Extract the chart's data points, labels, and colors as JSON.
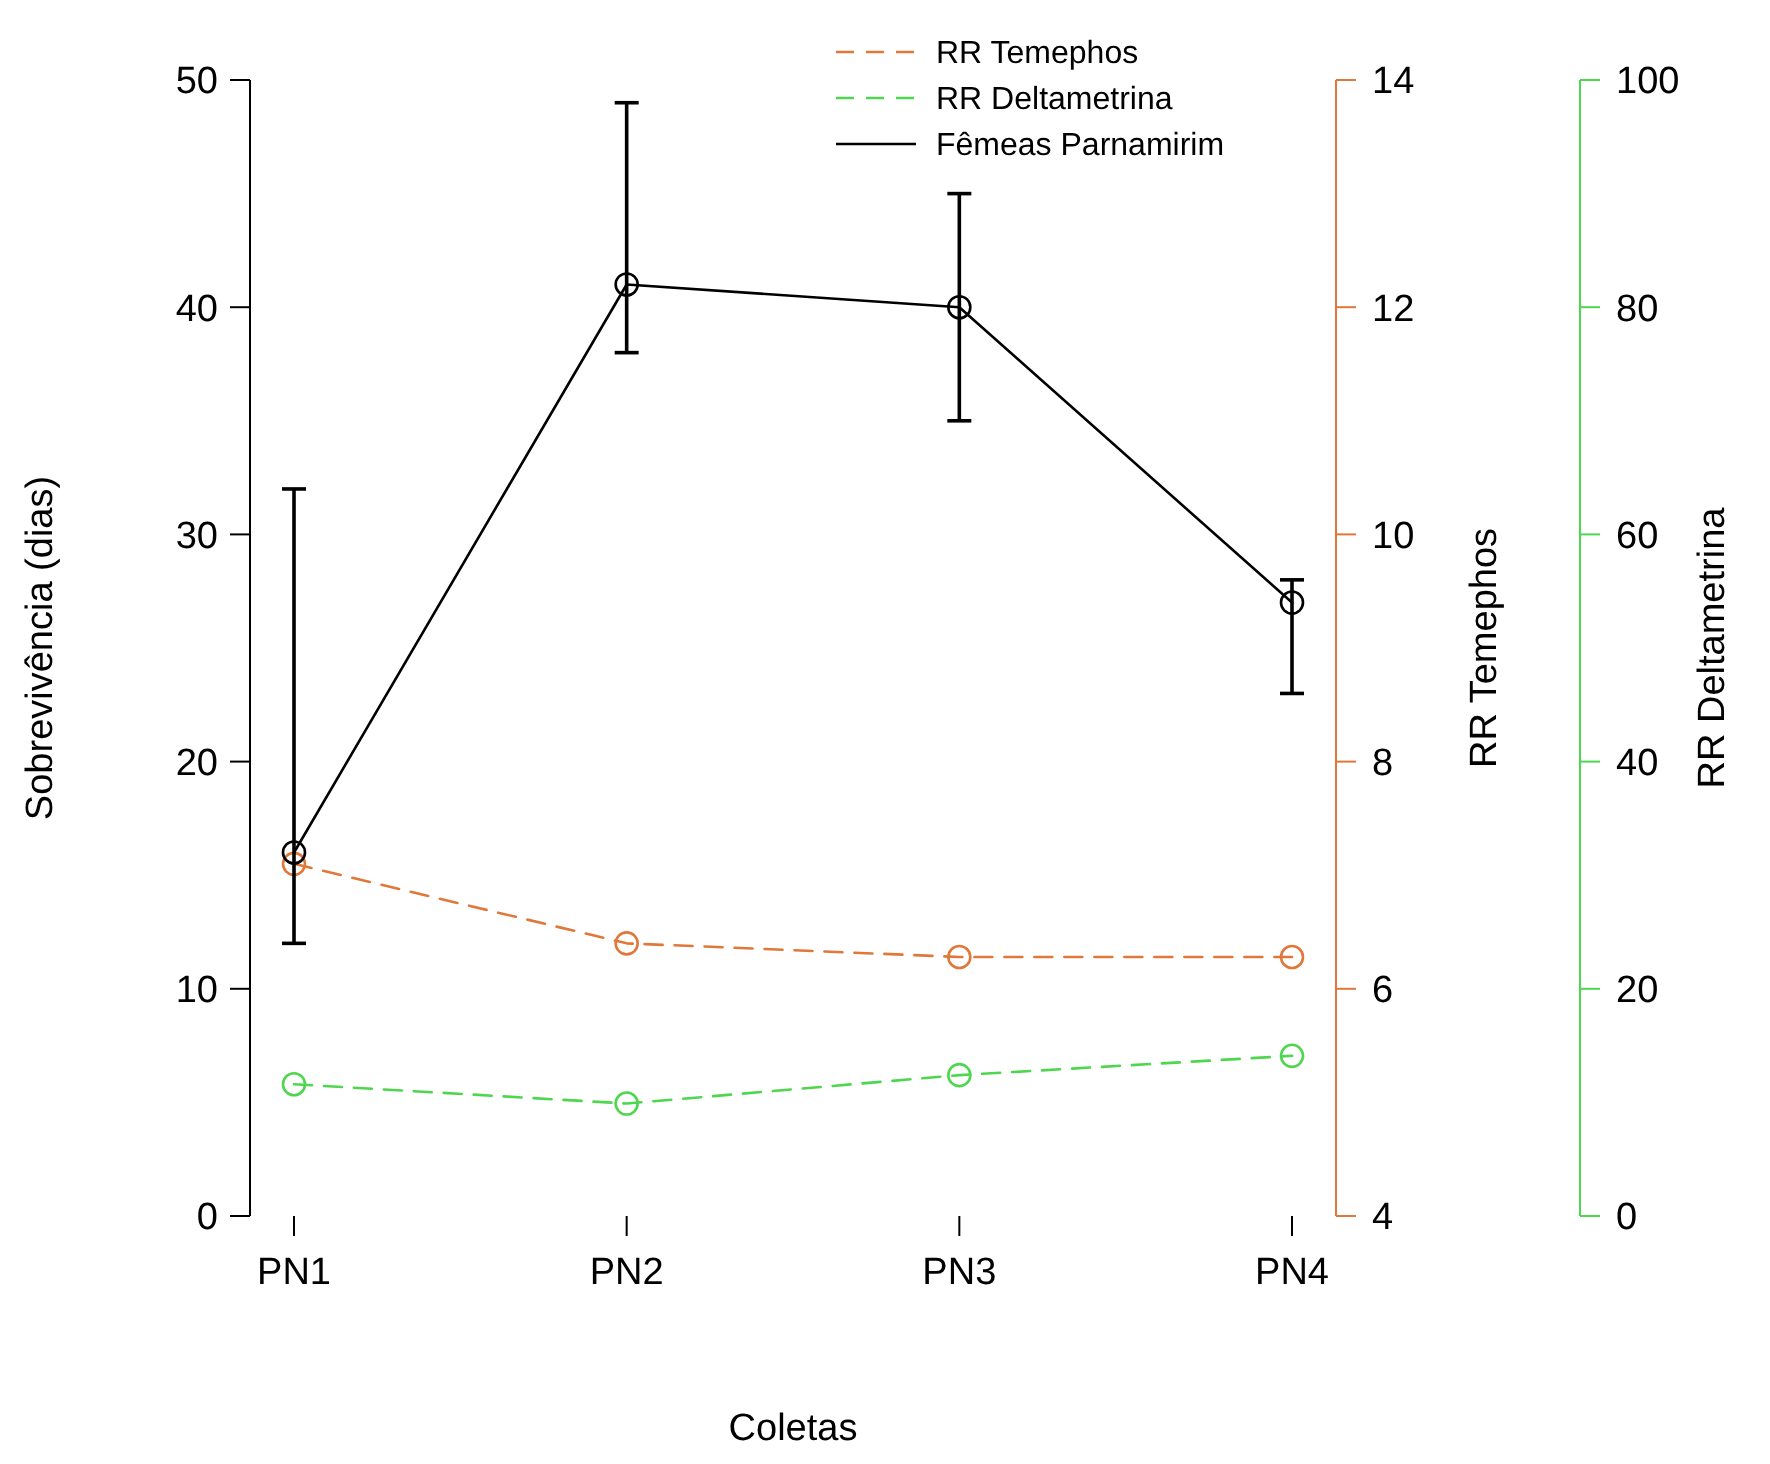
{
  "chart_data": {
    "type": "line",
    "xlabel": "Coletas",
    "ylabel": "Sobrevivência (dias)",
    "y2label": "RR Temephos",
    "y3label": "RR Deltametrina",
    "categories": [
      "PN1",
      "PN2",
      "PN3",
      "PN4"
    ],
    "series": [
      {
        "name": "RR Temephos",
        "color": "#e0783a",
        "values": [
          7.1,
          6.4,
          6.28,
          6.28
        ],
        "axis": "y2",
        "line_style": "dashed"
      },
      {
        "name": "RR Deltametrina",
        "color": "#4fd64f",
        "values": [
          11.6,
          9.9,
          12.4,
          14.1
        ],
        "axis": "y3",
        "line_style": "dashed"
      },
      {
        "name": "Fêmeas Parnamirim",
        "color": "#000000",
        "values": [
          16,
          41,
          40,
          27
        ],
        "errors": [
          [
            12,
            32
          ],
          [
            38,
            49
          ],
          [
            35,
            45
          ],
          [
            23,
            28
          ]
        ],
        "line_style": "solid"
      }
    ],
    "ylim": [
      0,
      50
    ],
    "yticks": [
      0,
      10,
      20,
      30,
      40,
      50
    ],
    "y2lim": [
      4,
      14
    ],
    "y2ticks": [
      4,
      6,
      8,
      10,
      12,
      14
    ],
    "y3lim": [
      0,
      100
    ],
    "y3ticks": [
      0,
      20,
      40,
      60,
      80,
      100
    ],
    "marker": "circle",
    "legend": "top right",
    "grid": false
  }
}
